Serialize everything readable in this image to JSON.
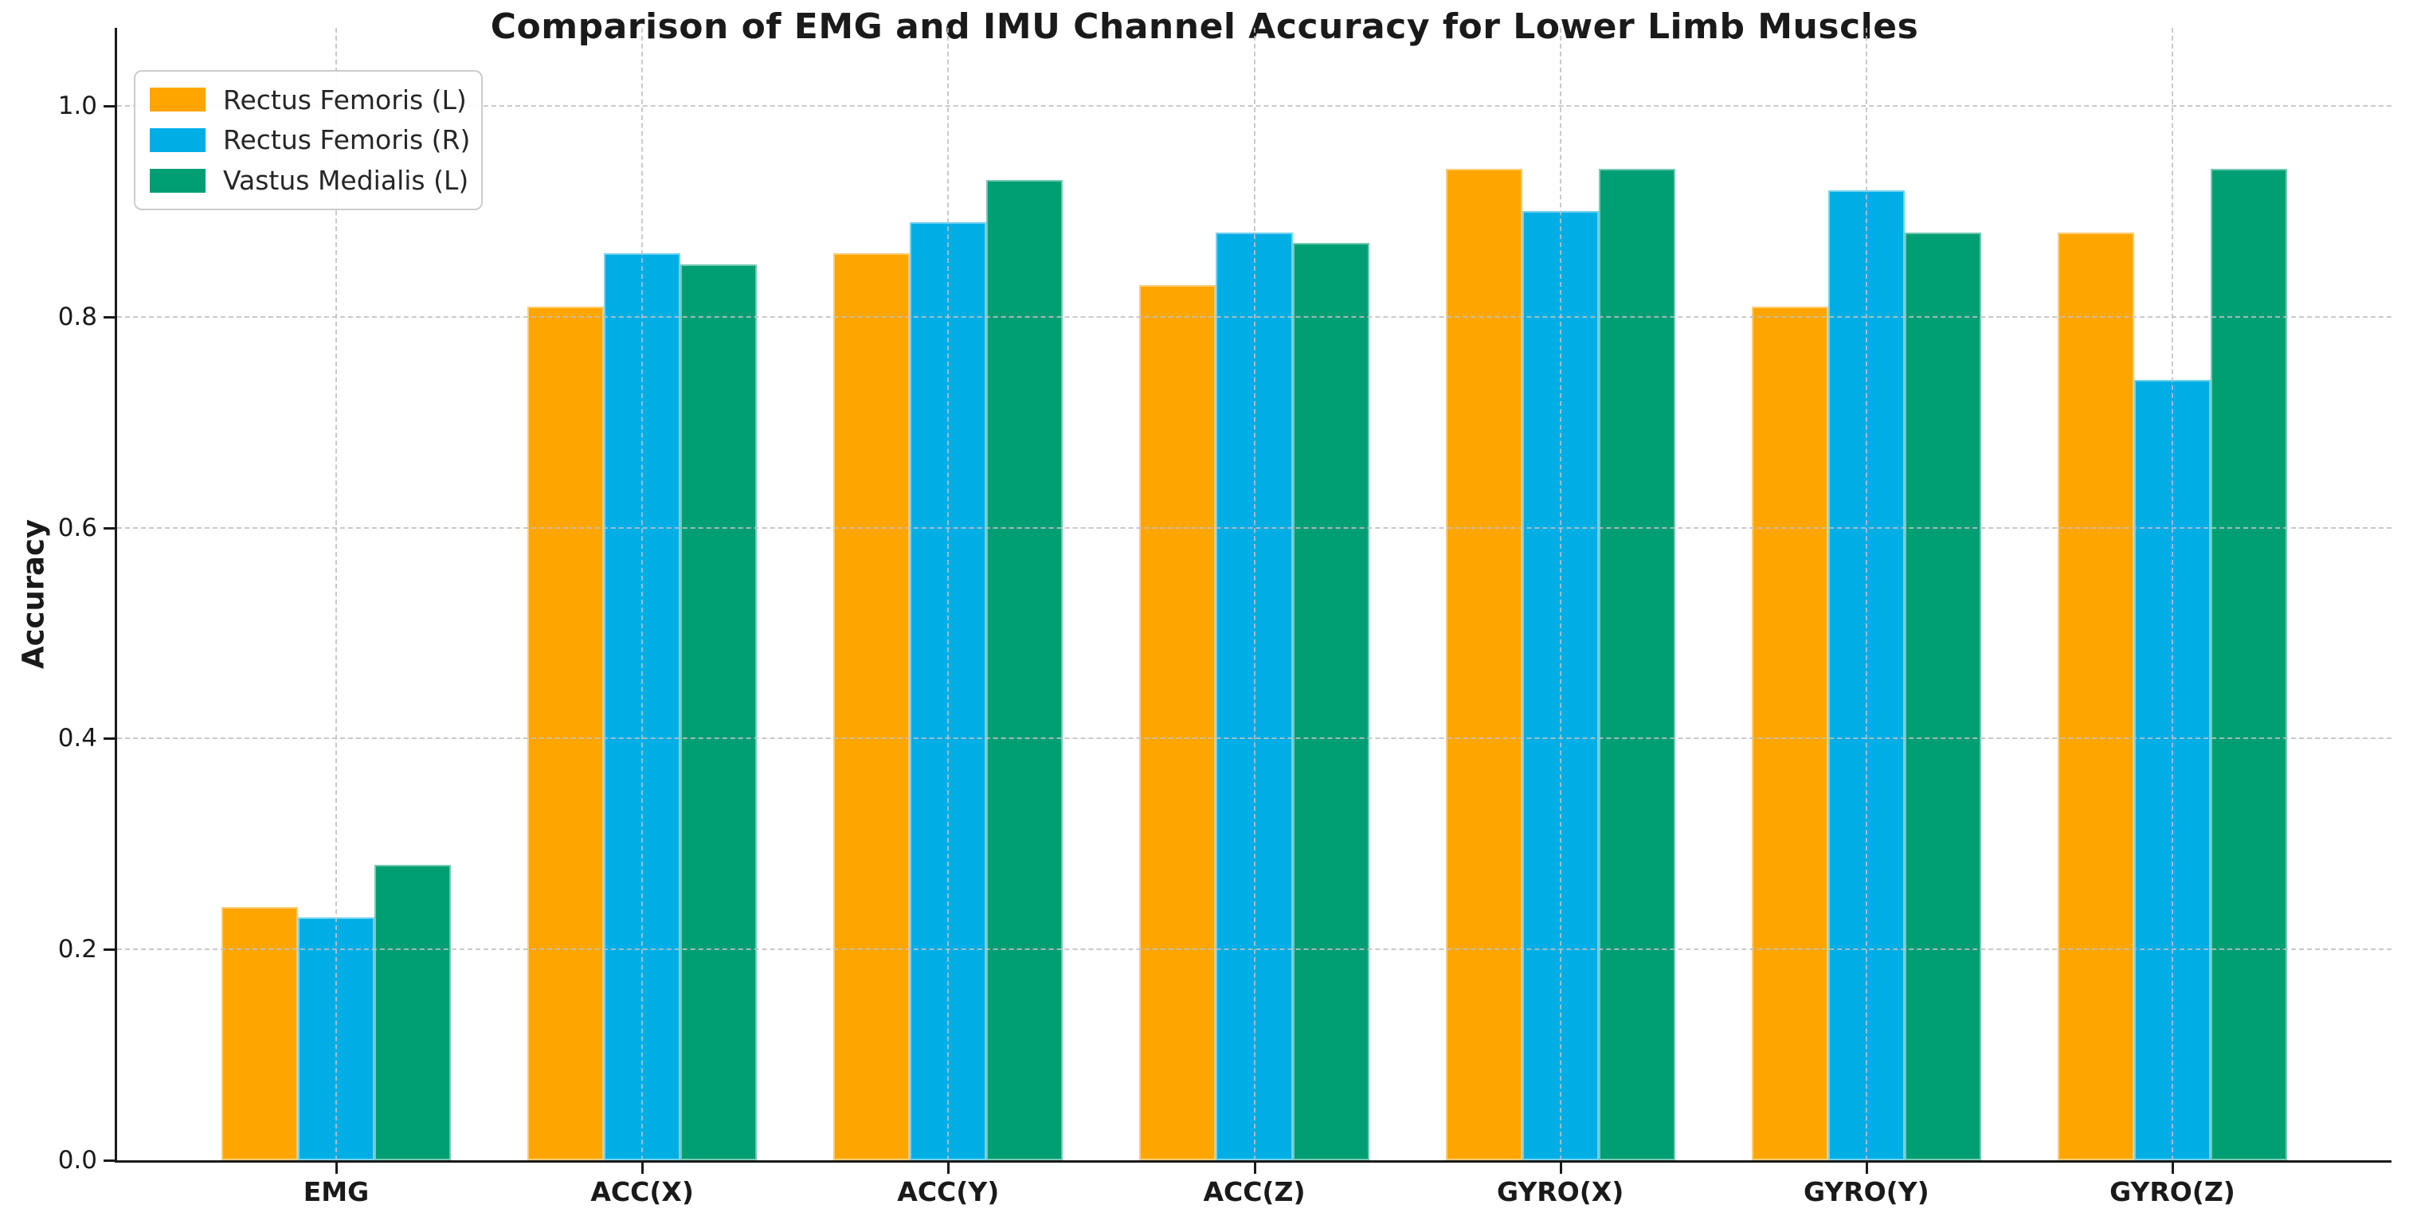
{
  "title": "Comparison of EMG and IMU Channel Accuracy for Lower Limb Muscles",
  "chart_data": {
    "type": "bar",
    "title": "Comparison of EMG and IMU Channel Accuracy for Lower Limb Muscles",
    "categories": [
      "EMG",
      "ACC(X)",
      "ACC(Y)",
      "ACC(Z)",
      "GYRO(X)",
      "GYRO(Y)",
      "GYRO(Z)"
    ],
    "series": [
      {
        "name": "Rectus Femoris (L)",
        "color": "#FFA500",
        "values": [
          0.24,
          0.81,
          0.86,
          0.83,
          0.94,
          0.81,
          0.88
        ]
      },
      {
        "name": "Rectus Femoris (R)",
        "color": "#00AEE6",
        "values": [
          0.23,
          0.86,
          0.89,
          0.88,
          0.9,
          0.92,
          0.74
        ]
      },
      {
        "name": "Vastus Medialis (L)",
        "color": "#009E73",
        "values": [
          0.28,
          0.85,
          0.93,
          0.87,
          0.94,
          0.88,
          0.94
        ]
      }
    ],
    "xlabel": "",
    "ylabel": "Accuracy",
    "yticks": [
      0.0,
      0.2,
      0.4,
      0.6,
      0.8,
      1.0
    ],
    "ytick_labels": [
      "0.0",
      "0.2",
      "0.4",
      "0.6",
      "0.8",
      "1.0"
    ],
    "ylim": [
      0,
      1.074
    ],
    "grid": "dashed",
    "grid_color": "#c0c0c0",
    "legend_position": "upper left",
    "axis_color": "#1a1a1a"
  }
}
